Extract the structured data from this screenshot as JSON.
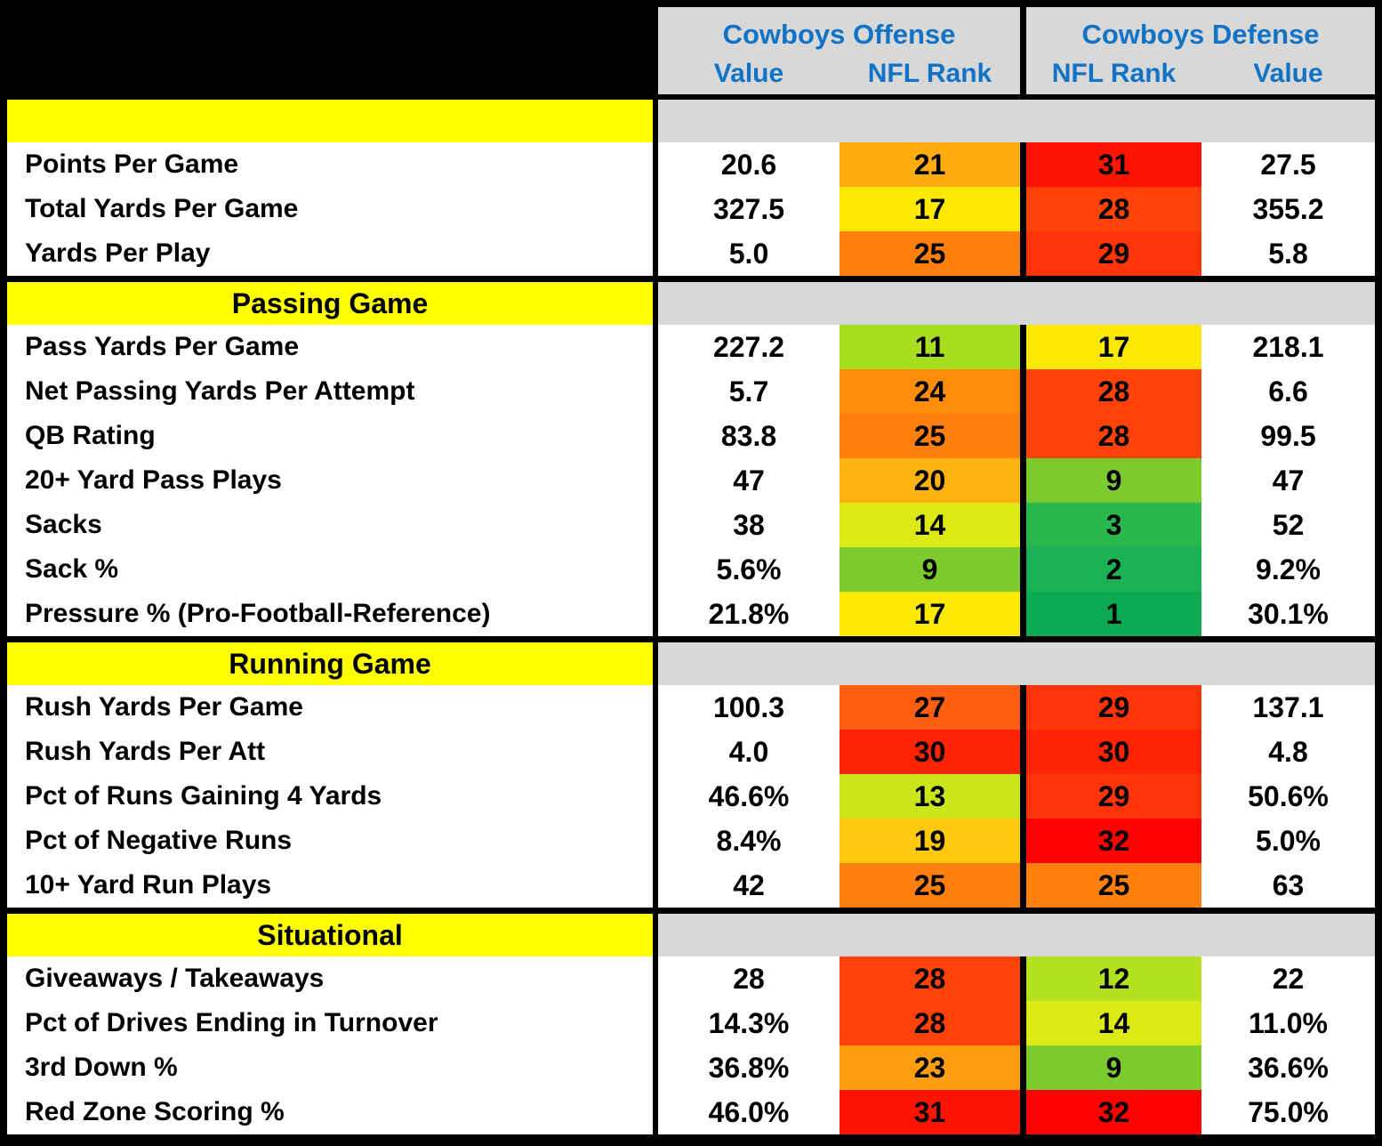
{
  "chart_data": {
    "type": "table",
    "title": "",
    "header": {
      "offense_group": "Cowboys Offense",
      "defense_group": "Cowboys Defense",
      "offense_cols": [
        "Value",
        "NFL Rank"
      ],
      "defense_cols": [
        "NFL Rank",
        "Value"
      ]
    },
    "colors": {
      "header_text": "#1173C5",
      "header_bg": "#D8D8D8",
      "section_bg": "#FFFF00",
      "section_text": "#000000",
      "border": "#000000",
      "rank_scale_best": "#0BAB53",
      "rank_scale_mid": "#FCE805",
      "rank_scale_worst": "#FF0100"
    },
    "sections": [
      {
        "title": "",
        "rows": [
          {
            "label": "Points Per Game",
            "off_value": "20.6",
            "off_rank": "21",
            "off_rank_color": "#FFAB11",
            "def_rank": "31",
            "def_rank_color": "#FF1404",
            "def_value": "27.5"
          },
          {
            "label": "Total Yards Per Game",
            "off_value": "327.5",
            "off_rank": "17",
            "off_rank_color": "#FCE805",
            "def_rank": "28",
            "def_rank_color": "#FF420A",
            "def_value": "355.2"
          },
          {
            "label": "Yards Per Play",
            "off_value": "5.0",
            "off_rank": "25",
            "off_rank_color": "#FF7F0F",
            "def_rank": "29",
            "def_rank_color": "#FF3408",
            "def_value": "5.8"
          }
        ]
      },
      {
        "title": "Passing Game",
        "rows": [
          {
            "label": "Pass Yards Per Game",
            "off_value": "227.2",
            "off_rank": "11",
            "off_rank_color": "#A8DE20",
            "def_rank": "17",
            "def_rank_color": "#FCE805",
            "def_value": "218.1"
          },
          {
            "label": "Net Passing Yards Per Attempt",
            "off_value": "5.7",
            "off_rank": "24",
            "off_rank_color": "#FF8C0D",
            "def_rank": "28",
            "def_rank_color": "#FF420A",
            "def_value": "6.6"
          },
          {
            "label": "QB Rating",
            "off_value": "83.8",
            "off_rank": "25",
            "off_rank_color": "#FF7F0F",
            "def_rank": "28",
            "def_rank_color": "#FF420A",
            "def_value": "99.5"
          },
          {
            "label": "20+ Yard Pass Plays",
            "off_value": "47",
            "off_rank": "20",
            "off_rank_color": "#FFB30F",
            "def_rank": "9",
            "def_rank_color": "#7CCB2E",
            "def_value": "47"
          },
          {
            "label": "Sacks",
            "off_value": "38",
            "off_rank": "14",
            "off_rank_color": "#DBE915",
            "def_rank": "3",
            "def_rank_color": "#28B84C",
            "def_value": "52"
          },
          {
            "label": "Sack %",
            "off_value": "5.6%",
            "off_rank": "9",
            "off_rank_color": "#7CCB2E",
            "def_rank": "2",
            "def_rank_color": "#1BB155",
            "def_value": "9.2%"
          },
          {
            "label": "Pressure % (Pro-Football-Reference)",
            "off_value": "21.8%",
            "off_rank": "17",
            "off_rank_color": "#FCE805",
            "def_rank": "1",
            "def_rank_color": "#0BAB53",
            "def_value": "30.1%"
          }
        ]
      },
      {
        "title": "Running Game",
        "rows": [
          {
            "label": "Rush Yards Per Game",
            "off_value": "100.3",
            "off_rank": "27",
            "off_rank_color": "#FF5F12",
            "def_rank": "29",
            "def_rank_color": "#FF3408",
            "def_value": "137.1"
          },
          {
            "label": "Rush Yards Per Att",
            "off_value": "4.0",
            "off_rank": "30",
            "off_rank_color": "#FF2306",
            "def_rank": "30",
            "def_rank_color": "#FF2306",
            "def_value": "4.8"
          },
          {
            "label": "Pct of Runs Gaining 4 Yards",
            "off_value": "46.6%",
            "off_rank": "13",
            "off_rank_color": "#C9E61B",
            "def_rank": "29",
            "def_rank_color": "#FF3408",
            "def_value": "50.6%"
          },
          {
            "label": "Pct of Negative Runs",
            "off_value": "8.4%",
            "off_rank": "19",
            "off_rank_color": "#FFC70D",
            "def_rank": "32",
            "def_rank_color": "#FF0100",
            "def_value": "5.0%"
          },
          {
            "label": "10+ Yard Run Plays",
            "off_value": "42",
            "off_rank": "25",
            "off_rank_color": "#FF7F0F",
            "def_rank": "25",
            "def_rank_color": "#FF7F0F",
            "def_value": "63"
          }
        ]
      },
      {
        "title": "Situational",
        "rows": [
          {
            "label": "Giveaways / Takeaways",
            "off_value": "28",
            "off_rank": "28",
            "off_rank_color": "#FF420A",
            "def_rank": "12",
            "def_rank_color": "#B4E11D",
            "def_value": "22"
          },
          {
            "label": "Pct of Drives Ending in Turnover",
            "off_value": "14.3%",
            "off_rank": "28",
            "off_rank_color": "#FF420A",
            "def_rank": "14",
            "def_rank_color": "#DBE915",
            "def_value": "11.0%"
          },
          {
            "label": "3rd Down %",
            "off_value": "36.8%",
            "off_rank": "23",
            "off_rank_color": "#FF9E12",
            "def_rank": "9",
            "def_rank_color": "#7CCB2E",
            "def_value": "36.6%"
          },
          {
            "label": "Red Zone Scoring %",
            "off_value": "46.0%",
            "off_rank": "31",
            "off_rank_color": "#FF1404",
            "def_rank": "32",
            "def_rank_color": "#FF0100",
            "def_value": "75.0%"
          }
        ]
      }
    ]
  }
}
